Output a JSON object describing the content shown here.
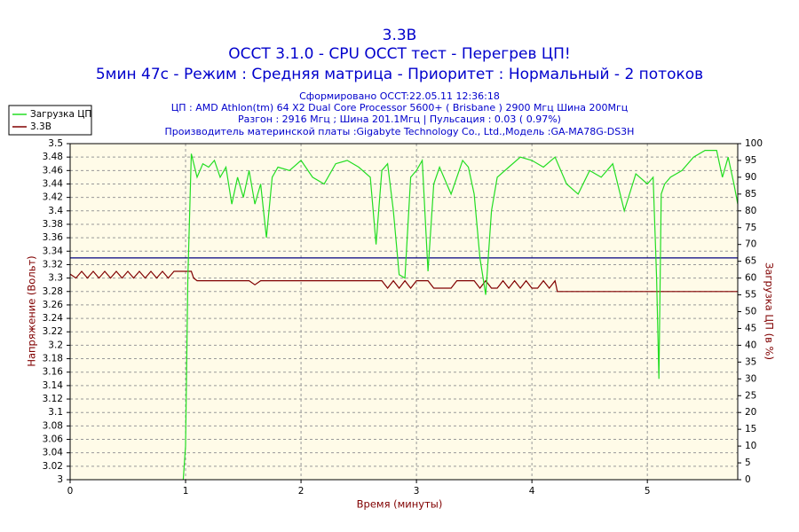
{
  "chart_data": {
    "type": "line",
    "title": "3.3В",
    "subtitle": "OCCT 3.1.0 - CPU OCCT тест - Перегрев ЦП!",
    "subtitle2": "5мин 47с - Режим : Средняя матрица - Приоритет : Нормальный - 2 потоков",
    "info": [
      "Сформировано OCCT:22.05.11 12:36:18",
      "ЦП : AMD Athlon(tm) 64 X2 Dual Core Processor 5600+ ( Brisbane ) 2900 Мгц Шина 200Мгц",
      "Разгон : 2916 Мгц ; Шина 201.1Мгц | Пульсация : 0.03 ( 0.97%)",
      "Производитель материнской платы :Gigabyte Technology Co., Ltd.,Модель :GA-MA78G-DS3H"
    ],
    "xlabel": "Время (минуты)",
    "ylabel": "Напряжение (Вольт)",
    "y2label": "Загрузка ЦП (в %)",
    "xlim": [
      0,
      5.783
    ],
    "xticks": [
      0,
      1,
      2,
      3,
      4,
      5
    ],
    "ylim": [
      3,
      3.5
    ],
    "yticks": [
      3.5,
      3.48,
      3.46,
      3.44,
      3.42,
      3.4,
      3.38,
      3.36,
      3.34,
      3.32,
      3.3,
      3.28,
      3.26,
      3.24,
      3.22,
      3.2,
      3.18,
      3.16,
      3.14,
      3.12,
      3.1,
      3.08,
      3.06,
      3.04,
      3.02,
      3
    ],
    "y2lim": [
      0,
      100
    ],
    "y2ticks": [
      100,
      95,
      90,
      85,
      80,
      75,
      70,
      65,
      60,
      55,
      50,
      45,
      40,
      35,
      30,
      25,
      20,
      15,
      10,
      5,
      0
    ],
    "grid": true,
    "legend": "top-left",
    "reference_line": {
      "value": 3.33,
      "color": "#000080"
    },
    "series": [
      {
        "name": "Загрузка ЦП",
        "color": "#22dd22",
        "axis": "y2",
        "x": [
          0.98,
          1.0,
          1.02,
          1.05,
          1.1,
          1.15,
          1.2,
          1.25,
          1.3,
          1.35,
          1.4,
          1.45,
          1.5,
          1.55,
          1.6,
          1.65,
          1.7,
          1.75,
          1.8,
          1.9,
          2.0,
          2.1,
          2.2,
          2.3,
          2.4,
          2.5,
          2.6,
          2.65,
          2.7,
          2.75,
          2.8,
          2.85,
          2.9,
          2.95,
          3.0,
          3.05,
          3.1,
          3.15,
          3.2,
          3.3,
          3.4,
          3.45,
          3.5,
          3.55,
          3.6,
          3.65,
          3.7,
          3.8,
          3.9,
          4.0,
          4.1,
          4.2,
          4.3,
          4.4,
          4.5,
          4.6,
          4.7,
          4.8,
          4.9,
          5.0,
          5.05,
          5.08,
          5.1,
          5.12,
          5.15,
          5.2,
          5.3,
          5.4,
          5.5,
          5.6,
          5.65,
          5.7,
          5.75,
          5.783
        ],
        "values": [
          0,
          10,
          60,
          97,
          90,
          94,
          93,
          95,
          90,
          93,
          82,
          90,
          84,
          92,
          82,
          88,
          72,
          90,
          93,
          92,
          95,
          90,
          88,
          94,
          95,
          93,
          90,
          70,
          92,
          94,
          80,
          61,
          60,
          90,
          92,
          95,
          62,
          88,
          93,
          85,
          95,
          93,
          85,
          66,
          55,
          80,
          90,
          93,
          96,
          95,
          93,
          96,
          88,
          85,
          92,
          90,
          94,
          80,
          91,
          88,
          90,
          60,
          30,
          85,
          88,
          90,
          92,
          96,
          98,
          98,
          90,
          96,
          88,
          82
        ]
      },
      {
        "name": "3.3В",
        "color": "#800000",
        "x": [
          0,
          0.05,
          0.1,
          0.15,
          0.2,
          0.25,
          0.3,
          0.35,
          0.4,
          0.45,
          0.5,
          0.55,
          0.6,
          0.65,
          0.7,
          0.75,
          0.8,
          0.85,
          0.9,
          0.95,
          1.0,
          1.05,
          1.07,
          1.1,
          1.55,
          1.6,
          1.65,
          2.7,
          2.75,
          2.8,
          2.85,
          2.9,
          2.95,
          3.0,
          3.1,
          3.15,
          3.3,
          3.35,
          3.5,
          3.55,
          3.6,
          3.65,
          3.7,
          3.75,
          3.8,
          3.85,
          3.9,
          3.95,
          4.0,
          4.05,
          4.1,
          4.15,
          4.2,
          4.22,
          5.783
        ],
        "values": [
          3.306,
          3.3,
          3.31,
          3.3,
          3.31,
          3.3,
          3.31,
          3.3,
          3.31,
          3.3,
          3.31,
          3.3,
          3.31,
          3.3,
          3.31,
          3.3,
          3.31,
          3.3,
          3.31,
          3.31,
          3.31,
          3.31,
          3.3,
          3.296,
          3.296,
          3.29,
          3.296,
          3.296,
          3.285,
          3.296,
          3.285,
          3.296,
          3.285,
          3.296,
          3.296,
          3.285,
          3.285,
          3.296,
          3.296,
          3.285,
          3.296,
          3.285,
          3.285,
          3.296,
          3.285,
          3.296,
          3.285,
          3.296,
          3.285,
          3.285,
          3.296,
          3.285,
          3.296,
          3.28,
          3.28
        ]
      }
    ]
  }
}
